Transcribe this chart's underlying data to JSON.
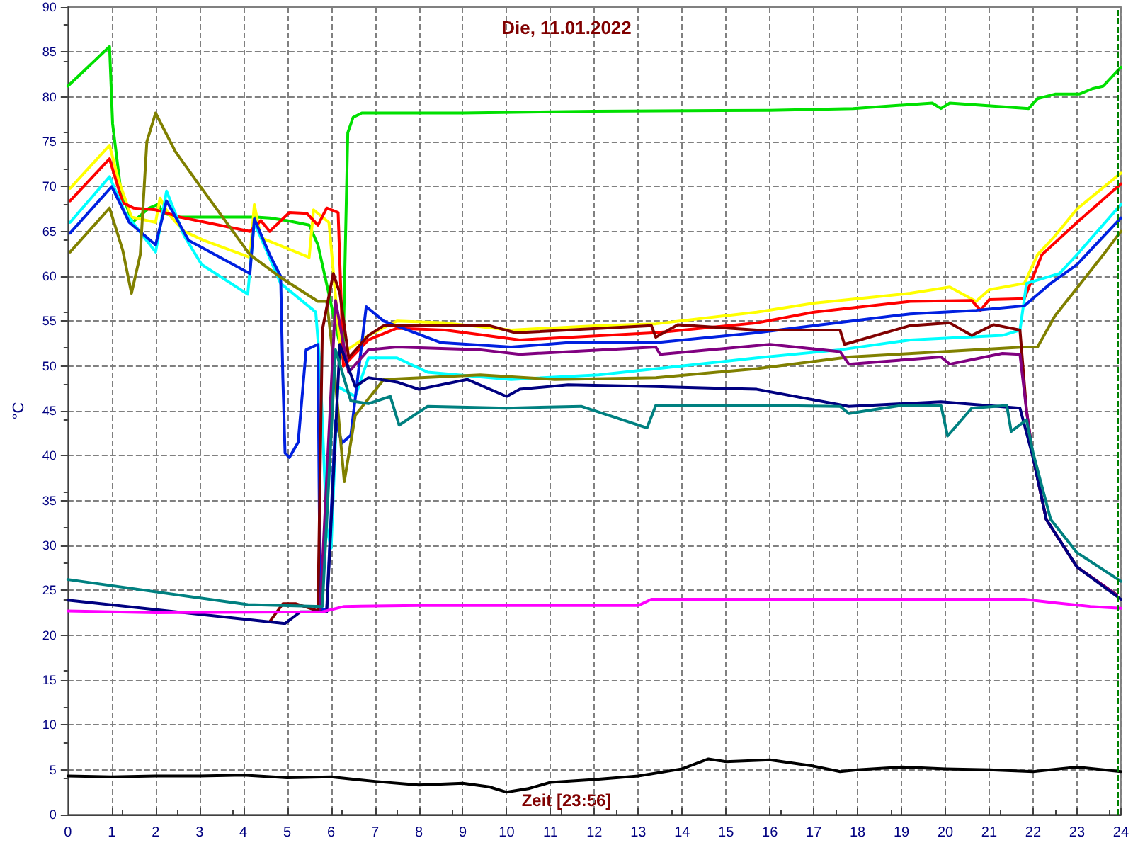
{
  "chart_data": {
    "type": "line",
    "title": "Die, 11.01.2022",
    "xlabel": "Zeit [23:56]",
    "ylabel": "°C",
    "xlim": [
      0,
      24
    ],
    "xticks": [
      0,
      1,
      2,
      3,
      4,
      5,
      6,
      7,
      8,
      9,
      10,
      11,
      12,
      13,
      14,
      15,
      16,
      17,
      18,
      19,
      20,
      21,
      22,
      23,
      24
    ],
    "ylim": [
      0,
      90
    ],
    "yticks": [
      0,
      5,
      10,
      15,
      20,
      25,
      30,
      35,
      40,
      45,
      50,
      55,
      60,
      65,
      70,
      75,
      80,
      85,
      90
    ],
    "grid": true,
    "marker": "none",
    "line_style": "solid",
    "ref_lines": [
      {
        "axis": "x",
        "value": 23.93,
        "color": "#008000",
        "line_style": "dashed"
      }
    ],
    "series": [
      {
        "color": "#00e000",
        "x": [
          0,
          0.95,
          1.02,
          1.2,
          1.47,
          1.85,
          2.05,
          2.2,
          2.5,
          4.3,
          4.6,
          5.0,
          5.5,
          5.7,
          5.95,
          6.27,
          6.38,
          6.5,
          6.7,
          9,
          12,
          16,
          17.9,
          19.7,
          19.9,
          20.1,
          21.9,
          22.1,
          22.5,
          23.05,
          23.35,
          23.6,
          24
        ],
        "values": [
          81.2,
          85.6,
          77,
          69.8,
          66,
          67.6,
          68,
          67,
          66.6,
          66.6,
          66.5,
          66.2,
          65.7,
          63.5,
          58,
          50.8,
          76,
          77.7,
          78.2,
          78.2,
          78.4,
          78.5,
          78.7,
          79.3,
          78.7,
          79.3,
          78.7,
          79.8,
          80.3,
          80.3,
          80.9,
          81.2,
          83.3
        ]
      },
      {
        "color": "#ffff00",
        "x": [
          0.05,
          0.95,
          1.15,
          1.45,
          2.0,
          2.1,
          2.3,
          2.65,
          3.1,
          4.15,
          4.25,
          4.4,
          5.5,
          5.6,
          5.95,
          6.22,
          6.85,
          7.5,
          8.6,
          10.1,
          12.1,
          13.4,
          15.7,
          17,
          19.2,
          20.1,
          20.7,
          21,
          21.8,
          22.1,
          22.5,
          23,
          23.5,
          24
        ],
        "values": [
          69.8,
          74.6,
          70.8,
          66.6,
          66,
          68.7,
          66.9,
          65,
          64,
          62.1,
          68,
          64.3,
          62.1,
          67.4,
          66,
          51.3,
          53.4,
          55,
          54.8,
          54,
          54.5,
          54.7,
          56,
          57,
          58.1,
          58.8,
          57.2,
          58.5,
          59.2,
          62.4,
          64.5,
          67.5,
          69.5,
          71.5
        ]
      },
      {
        "color": "#ff0000",
        "x": [
          0.05,
          0.95,
          1.25,
          1.5,
          2.0,
          2.55,
          4.15,
          4.4,
          4.6,
          5.05,
          5.45,
          5.7,
          5.9,
          6.16,
          6.28,
          6.85,
          7.5,
          8.6,
          10.3,
          13.4,
          15.7,
          17,
          19.2,
          20.6,
          20.8,
          21,
          21.8,
          22.2,
          23,
          24
        ],
        "values": [
          68.4,
          73.1,
          68.2,
          67.6,
          67.4,
          66.6,
          65,
          66.2,
          65,
          67.1,
          67,
          65.7,
          67.6,
          67.1,
          50,
          52.9,
          54.2,
          54,
          52.9,
          53.7,
          54.8,
          56,
          57.2,
          57.3,
          56.2,
          57.4,
          57.5,
          62.4,
          66,
          70.3
        ]
      },
      {
        "color": "#00ffff",
        "x": [
          0.05,
          0.95,
          1.3,
          2.0,
          2.25,
          2.65,
          3.05,
          4.1,
          4.25,
          4.85,
          5.65,
          5.75,
          5.9,
          6.0,
          6.15,
          6.55,
          6.85,
          7.5,
          8.2,
          10.1,
          12.1,
          15.7,
          17.6,
          19.2,
          21.3,
          21.7,
          21.85,
          22.6,
          23,
          24
        ],
        "values": [
          66,
          71.1,
          67.1,
          62.7,
          69.5,
          64.5,
          61.3,
          58,
          66,
          59.2,
          56,
          49.8,
          31.9,
          29.7,
          47.7,
          46.6,
          50.9,
          50.9,
          49.3,
          48.5,
          49,
          50.9,
          51.8,
          52.9,
          53.4,
          54,
          59.2,
          60.3,
          62.4,
          68
        ]
      },
      {
        "color": "#0020e0",
        "x": [
          0.05,
          1.0,
          1.4,
          2.0,
          2.25,
          2.75,
          4.15,
          4.25,
          4.6,
          4.85,
          4.9,
          4.95,
          5.05,
          5.25,
          5.43,
          5.7,
          5.75,
          5.9,
          6.1,
          6.25,
          6.45,
          6.8,
          7.2,
          8.5,
          10.1,
          11.4,
          13.4,
          15.7,
          17,
          19.2,
          20.7,
          21.8,
          22.4,
          23,
          24
        ],
        "values": [
          64.8,
          70,
          66,
          63.5,
          68.4,
          64,
          60.3,
          66.4,
          62.4,
          60,
          48.7,
          40.3,
          39.8,
          41.5,
          51.8,
          52.4,
          22.9,
          22.9,
          43.9,
          41.4,
          42.3,
          56.6,
          55,
          52.6,
          52.1,
          52.6,
          52.6,
          53.7,
          54.5,
          55.8,
          56.2,
          56.7,
          59.2,
          61.3,
          66.5
        ]
      },
      {
        "color": "#808000",
        "x": [
          0.05,
          0.95,
          1.25,
          1.45,
          1.65,
          1.8,
          2.0,
          2.45,
          3.05,
          4.15,
          4.9,
          5.7,
          5.9,
          6.05,
          6.3,
          6.55,
          7.2,
          9.4,
          11.1,
          13.4,
          15.7,
          17.8,
          21.8,
          22.1,
          22.5,
          23.6,
          24
        ],
        "values": [
          62.7,
          67.6,
          62.9,
          58.1,
          62.4,
          75,
          78.2,
          73.9,
          69.8,
          62.4,
          59.7,
          57.2,
          57.2,
          50.9,
          37.1,
          44.5,
          48.5,
          49,
          48.5,
          48.7,
          49.7,
          51,
          52.1,
          52.1,
          55.6,
          62.4,
          65
        ]
      },
      {
        "color": "#800000",
        "x": [
          4.6,
          4.9,
          5.2,
          5.7,
          5.8,
          6.05,
          6.2,
          6.4,
          6.85,
          7.2,
          9.6,
          10.2,
          13.3,
          13.4,
          13.9,
          15.7,
          17.6,
          17.7,
          19.2,
          20.1,
          20.6,
          21.1,
          21.7,
          21.85,
          22.0,
          22.3,
          23,
          23.9
        ],
        "values": [
          21.5,
          23.5,
          23.5,
          22.7,
          54,
          60.3,
          58.1,
          50.9,
          53.4,
          54.5,
          54.5,
          53.7,
          54.5,
          53.2,
          54.6,
          54,
          54,
          52.4,
          54.5,
          54.8,
          53.4,
          54.6,
          54,
          45,
          39.8,
          32.9,
          27.6,
          24.5
        ]
      },
      {
        "color": "#800080",
        "x": [
          5.6,
          5.75,
          6.1,
          6.4,
          6.85,
          7.5,
          9.4,
          10.3,
          13.4,
          13.5,
          16,
          17.6,
          17.8,
          19.9,
          20.1,
          21.3,
          21.7,
          21.85,
          22.0,
          22.3,
          23,
          23.9
        ],
        "values": [
          22.6,
          22.6,
          57.3,
          49.3,
          51.8,
          52.1,
          51.8,
          51.3,
          52.1,
          51.3,
          52.4,
          51.6,
          50.2,
          51,
          50.2,
          51.4,
          51.3,
          45,
          39.8,
          32.9,
          27.6,
          24.5
        ]
      },
      {
        "color": "#000080",
        "x": [
          0,
          4.95,
          5.3,
          5.9,
          6.2,
          6.55,
          6.85,
          7.5,
          8,
          9.1,
          10,
          10.3,
          11.4,
          13.4,
          15.7,
          17.8,
          19.9,
          21.7,
          22.0,
          22.3,
          23,
          24
        ],
        "values": [
          23.9,
          21.3,
          22.6,
          22.6,
          52.4,
          47.7,
          48.7,
          48.2,
          47.4,
          48.5,
          46.6,
          47.4,
          47.9,
          47.7,
          47.4,
          45.5,
          46,
          45.3,
          39.8,
          32.9,
          27.6,
          24
        ]
      },
      {
        "color": "#008080",
        "x": [
          0,
          4.1,
          5.8,
          6.1,
          6.45,
          6.85,
          7.35,
          7.55,
          8.2,
          10,
          11.7,
          13.2,
          13.4,
          16,
          17.6,
          17.8,
          19,
          19.9,
          20.05,
          20.6,
          21.4,
          21.5,
          21.85,
          22.0,
          22.4,
          23,
          24
        ],
        "values": [
          26.2,
          23.4,
          23.2,
          51.8,
          46.1,
          45.8,
          46.6,
          43.4,
          45.5,
          45.3,
          45.5,
          43.1,
          45.6,
          45.6,
          45.5,
          44.7,
          45.6,
          45.6,
          42.2,
          45.3,
          45.6,
          42.7,
          44,
          40.3,
          32.9,
          29.2,
          26
        ]
      },
      {
        "color": "#ff00ff",
        "x": [
          0,
          2,
          5.8,
          6.3,
          8,
          13,
          13.3,
          18,
          21.8,
          22.5,
          23.3,
          24
        ],
        "values": [
          22.7,
          22.5,
          22.6,
          23.2,
          23.3,
          23.3,
          24,
          24,
          24,
          23.6,
          23.2,
          23
        ]
      },
      {
        "color": "#000000",
        "x": [
          0,
          1,
          2,
          3,
          4,
          5,
          6,
          7,
          8,
          9,
          9.6,
          10,
          10.5,
          11,
          12,
          13,
          14,
          14.6,
          15,
          16,
          17,
          17.6,
          18,
          19,
          20,
          21,
          22,
          23,
          24
        ],
        "values": [
          4.3,
          4.2,
          4.3,
          4.3,
          4.4,
          4.1,
          4.2,
          3.7,
          3.3,
          3.5,
          3.1,
          2.5,
          2.9,
          3.6,
          3.9,
          4.3,
          5.1,
          6.2,
          5.9,
          6.1,
          5.4,
          4.8,
          5,
          5.3,
          5.1,
          5,
          4.8,
          5.3,
          4.8
        ]
      }
    ]
  }
}
